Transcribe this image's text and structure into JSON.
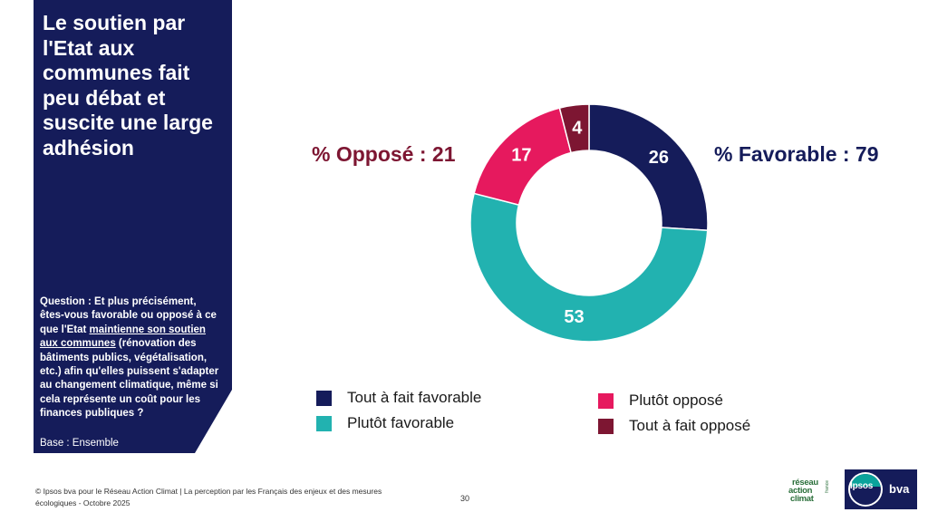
{
  "panel": {
    "title": "Le soutien par\nl'Etat aux\ncommunes fait\npeu débat et\nsuscite une large\nadhésion",
    "question_prefix": "Question : Et plus précisément, êtes-vous favorable ou opposé à ce que l'Etat ",
    "question_underlined": "maintienne son soutien aux communes",
    "question_suffix": " (rénovation des bâtiments publics, végétalisation, etc.) afin qu'elles puissent s'adapter au changement climatique, même si cela représente un coût pour les finances publiques ?",
    "base": "Base : Ensemble"
  },
  "summary": {
    "oppose": "% Opposé : 21",
    "favorable": "% Favorable : 79"
  },
  "legend": [
    {
      "label": "Tout à fait favorable",
      "color": "#151c5a"
    },
    {
      "label": "Plutôt favorable",
      "color": "#22b2b0"
    },
    {
      "label": "Plutôt opposé",
      "color": "#e6195e"
    },
    {
      "label": "Tout à fait opposé",
      "color": "#7d1632"
    }
  ],
  "chart_data": {
    "type": "pie",
    "donut": true,
    "categories": [
      "Tout à fait favorable",
      "Plutôt favorable",
      "Plutôt opposé",
      "Tout à fait opposé"
    ],
    "values": [
      26,
      53,
      17,
      4
    ],
    "labels": [
      "26",
      "53",
      "17",
      "4"
    ],
    "colors": [
      "#151c5a",
      "#22b2b0",
      "#e6195e",
      "#7d1632"
    ],
    "start": "12 o'clock, clockwise",
    "legend_position": "bottom"
  },
  "footer": {
    "text": "© Ipsos bva pour le Réseau Action Climat | La perception par les Français des enjeux et des mesures écologiques - Octobre 2025",
    "page": "30"
  },
  "logos": {
    "rac_line1": "réseau",
    "rac_line2": "action",
    "rac_line3": "climat",
    "rac_side": "france",
    "ipsos": "Ipsos",
    "bva": "bva"
  }
}
